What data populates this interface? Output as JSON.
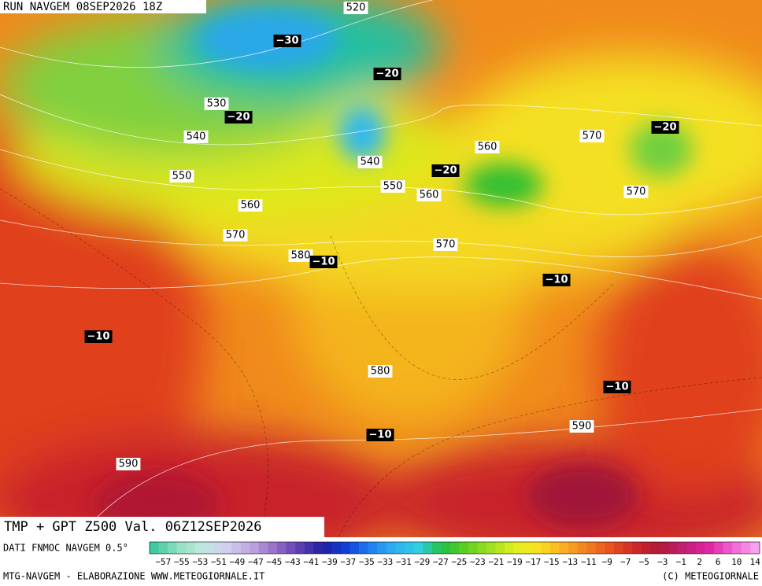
{
  "header": {
    "title": "RUN NAVGEM 08SEP2026 18Z"
  },
  "map": {
    "height_labels": [
      "520",
      "530",
      "540",
      "540",
      "550",
      "550",
      "560",
      "560",
      "560",
      "570",
      "570",
      "570",
      "570",
      "580",
      "580",
      "590",
      "590"
    ],
    "temperature_labels": [
      "−30",
      "−20",
      "−20",
      "−20",
      "−20",
      "−10",
      "−10",
      "−10",
      "−10",
      "−10"
    ]
  },
  "caption": "TMP + GPT Z500 Val. 06Z12SEP2026",
  "footer": {
    "source": "DATI FNMOC NAVGEM 0.5°",
    "credit_left": "MTG-NAVGEM - ELABORAZIONE WWW.METEOGIORNALE.IT",
    "credit_right": "(C) METEOGIORNALE"
  },
  "legend": {
    "ticks": [
      "−57",
      "−55",
      "−53",
      "−51",
      "−49",
      "−47",
      "−45",
      "−43",
      "−41",
      "−39",
      "−37",
      "−35",
      "−33",
      "−31",
      "−29",
      "−27",
      "−25",
      "−23",
      "−21",
      "−19",
      "−17",
      "−15",
      "−13",
      "−11",
      "−9",
      "−7",
      "−5",
      "−3",
      "−1",
      "2",
      "6",
      "10",
      "14"
    ]
  }
}
